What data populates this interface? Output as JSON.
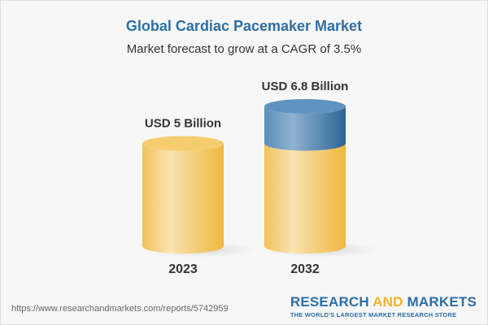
{
  "header": {
    "title": "Global Cardiac Pacemaker Market",
    "subtitle": "Market forecast to grow at a CAGR of 3.5%"
  },
  "chart_data": {
    "type": "bar",
    "style": "3d-cylinder",
    "categories": [
      "2023",
      "2032"
    ],
    "values": [
      5,
      6.8
    ],
    "data_labels": [
      "USD 5 Billion",
      "USD 6.8 Billion"
    ],
    "unit": "USD Billion",
    "growth_highlight_color": "#3f7cad",
    "base_color": "#f3c75e",
    "grid": false
  },
  "footer": {
    "url": "https://www.researchandmarkets.com/reports/5742959",
    "logo_part1": "RESEARCH ",
    "logo_part2": "AND",
    "logo_part3": " MARKETS",
    "tagline": "THE WORLD'S LARGEST MARKET RESEARCH STORE"
  }
}
